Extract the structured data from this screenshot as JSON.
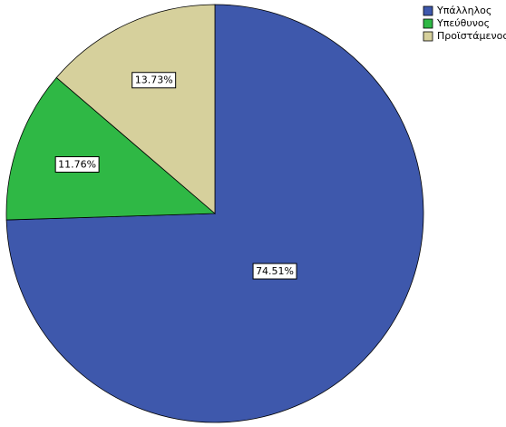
{
  "chart_data": {
    "type": "pie",
    "categories": [
      "Υπάλληλος",
      "Υπεύθυνος",
      "Προϊστάμενος"
    ],
    "values": [
      74.51,
      11.76,
      13.73
    ],
    "value_labels": [
      "74.51%",
      "11.76%",
      "13.73%"
    ],
    "colors": [
      "#3e58ac",
      "#2fb845",
      "#d6d09c"
    ],
    "legend": "top-right"
  }
}
